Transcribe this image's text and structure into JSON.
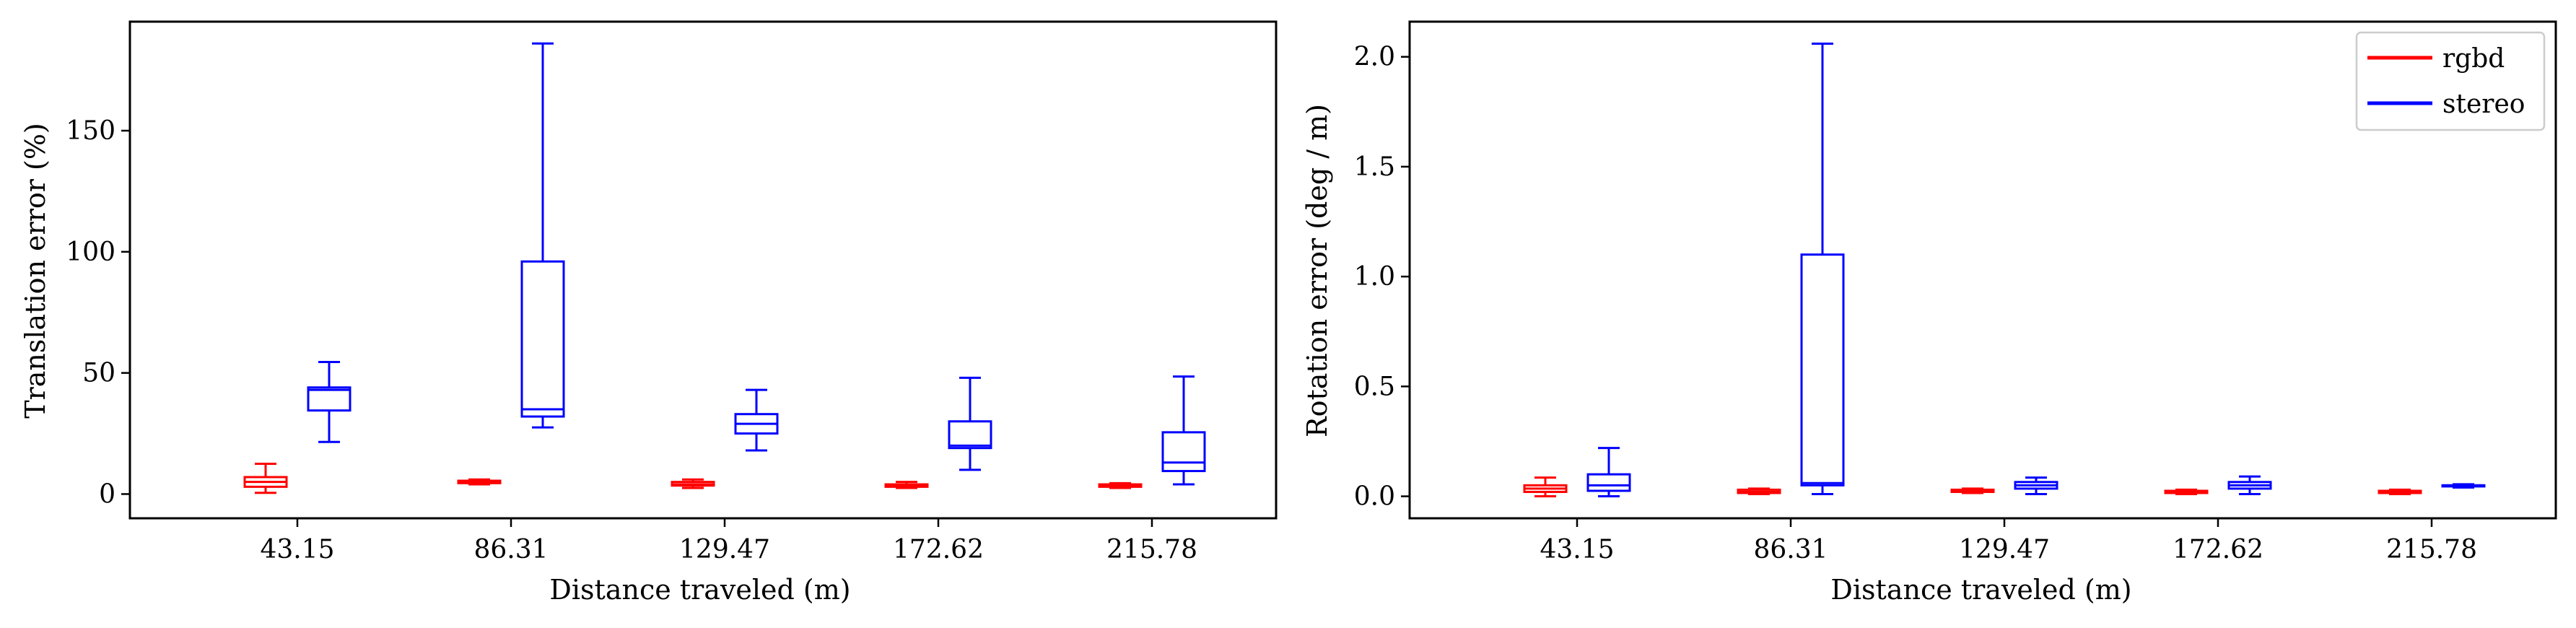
{
  "colors": {
    "rgbd": "#ff0000",
    "stereo": "#0000ff"
  },
  "chart_data": [
    {
      "type": "box",
      "xlabel": "Distance traveled (m)",
      "ylabel": "Translation error (%)",
      "categories": [
        "43.15",
        "86.31",
        "129.47",
        "172.62",
        "215.78"
      ],
      "ylim": [
        -10,
        195
      ],
      "yticks": [
        0,
        50,
        100,
        150
      ],
      "ytick_labels": [
        "0",
        "50",
        "100",
        "150"
      ],
      "grid": false,
      "series": [
        {
          "name": "rgbd",
          "boxes": [
            {
              "whislo": 0.5,
              "q1": 3,
              "med": 5,
              "q3": 7,
              "whishi": 12.5
            },
            {
              "whislo": 4,
              "q1": 4.5,
              "med": 5,
              "q3": 5.5,
              "whishi": 6
            },
            {
              "whislo": 2.5,
              "q1": 3.5,
              "med": 4,
              "q3": 5,
              "whishi": 6
            },
            {
              "whislo": 2.5,
              "q1": 3,
              "med": 3.5,
              "q3": 4,
              "whishi": 5
            },
            {
              "whislo": 2.5,
              "q1": 3,
              "med": 3.5,
              "q3": 4,
              "whishi": 4.5
            }
          ]
        },
        {
          "name": "stereo",
          "boxes": [
            {
              "whislo": 21.5,
              "q1": 34.5,
              "med": 43,
              "q3": 44,
              "whishi": 54.5
            },
            {
              "whislo": 27.5,
              "q1": 32,
              "med": 35,
              "q3": 96,
              "whishi": 186
            },
            {
              "whislo": 18,
              "q1": 25,
              "med": 29,
              "q3": 33,
              "whishi": 43
            },
            {
              "whislo": 10,
              "q1": 19,
              "med": 20,
              "q3": 30,
              "whishi": 48
            },
            {
              "whislo": 4,
              "q1": 9.5,
              "med": 13,
              "q3": 25.5,
              "whishi": 48.5
            }
          ]
        }
      ]
    },
    {
      "type": "box",
      "xlabel": "Distance traveled (m)",
      "ylabel": "Rotation error (deg / m)",
      "categories": [
        "43.15",
        "86.31",
        "129.47",
        "172.62",
        "215.78"
      ],
      "ylim": [
        -0.1,
        2.16
      ],
      "yticks": [
        0,
        0.5,
        1,
        1.5,
        2
      ],
      "ytick_labels": [
        "0.0",
        "0.5",
        "1.0",
        "1.5",
        "2.0"
      ],
      "grid": false,
      "legend_position": "top-right",
      "series": [
        {
          "name": "rgbd",
          "boxes": [
            {
              "whislo": 0.0,
              "q1": 0.02,
              "med": 0.035,
              "q3": 0.05,
              "whishi": 0.085
            },
            {
              "whislo": 0.01,
              "q1": 0.015,
              "med": 0.02,
              "q3": 0.03,
              "whishi": 0.035
            },
            {
              "whislo": 0.015,
              "q1": 0.02,
              "med": 0.025,
              "q3": 0.03,
              "whishi": 0.035
            },
            {
              "whislo": 0.01,
              "q1": 0.015,
              "med": 0.02,
              "q3": 0.025,
              "whishi": 0.03
            },
            {
              "whislo": 0.01,
              "q1": 0.015,
              "med": 0.02,
              "q3": 0.025,
              "whishi": 0.03
            }
          ]
        },
        {
          "name": "stereo",
          "boxes": [
            {
              "whislo": 0.0,
              "q1": 0.025,
              "med": 0.05,
              "q3": 0.1,
              "whishi": 0.22
            },
            {
              "whislo": 0.01,
              "q1": 0.05,
              "med": 0.06,
              "q3": 1.1,
              "whishi": 2.06
            },
            {
              "whislo": 0.01,
              "q1": 0.035,
              "med": 0.05,
              "q3": 0.065,
              "whishi": 0.085
            },
            {
              "whislo": 0.01,
              "q1": 0.035,
              "med": 0.05,
              "q3": 0.065,
              "whishi": 0.09
            },
            {
              "whislo": 0.04,
              "q1": 0.045,
              "med": 0.05,
              "q3": 0.05,
              "whishi": 0.055
            }
          ]
        }
      ]
    }
  ]
}
